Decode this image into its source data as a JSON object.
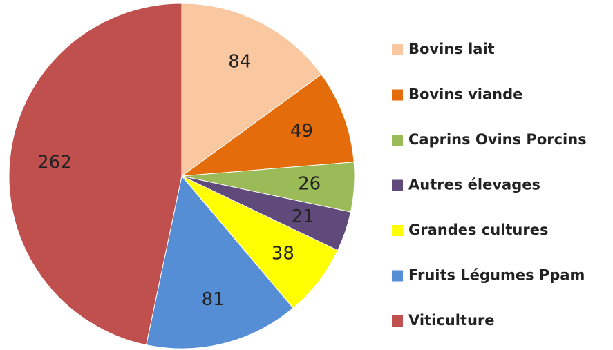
{
  "chart_data": {
    "type": "pie",
    "categories": [
      "Bovins lait",
      "Bovins viande",
      "Caprins Ovins Porcins",
      "Autres élevages",
      "Grandes cultures",
      "Fruits Légumes Ppam",
      "Viticulture"
    ],
    "values": [
      84,
      49,
      26,
      21,
      38,
      81,
      262
    ],
    "colors": [
      "#fac8a0",
      "#e46c0a",
      "#9bbb59",
      "#604a7b",
      "#ffff00",
      "#558ed5",
      "#c0504d"
    ],
    "legend": "right"
  }
}
